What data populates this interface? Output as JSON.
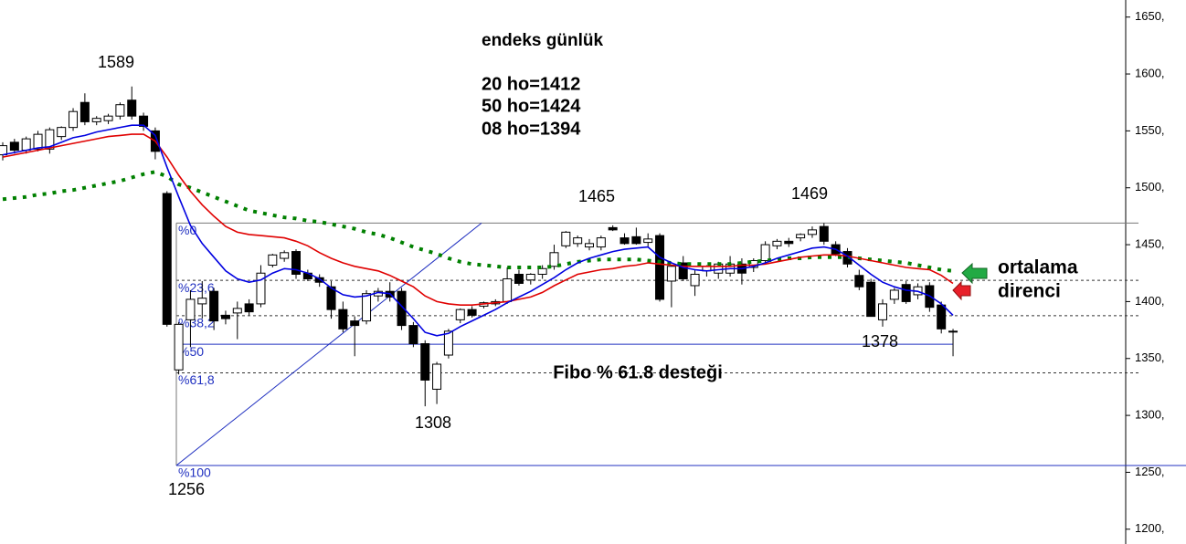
{
  "chart_data": {
    "type": "candlestick",
    "ylim": [
      1187,
      1665
    ],
    "yticks": [
      {
        "value": 1200,
        "label": "1200,"
      },
      {
        "value": 1250,
        "label": "1250,"
      },
      {
        "value": 1300,
        "label": "1300,"
      },
      {
        "value": 1350,
        "label": "1350,"
      },
      {
        "value": 1400,
        "label": "1400,"
      },
      {
        "value": 1450,
        "label": "1450,"
      },
      {
        "value": 1500,
        "label": "1500,"
      },
      {
        "value": 1550,
        "label": "1550,"
      },
      {
        "value": 1600,
        "label": "1600,"
      },
      {
        "value": 1650,
        "label": "1650,"
      }
    ],
    "candles": [
      [
        1529,
        1540,
        1524,
        1537
      ],
      [
        1540,
        1543,
        1530,
        1533
      ],
      [
        1533,
        1545,
        1530,
        1543
      ],
      [
        1534,
        1550,
        1532,
        1547
      ],
      [
        1534,
        1553,
        1530,
        1551
      ],
      [
        1545,
        1554,
        1542,
        1553
      ],
      [
        1553,
        1570,
        1550,
        1567
      ],
      [
        1575,
        1583,
        1555,
        1558
      ],
      [
        1558,
        1563,
        1555,
        1561
      ],
      [
        1559,
        1565,
        1556,
        1563
      ],
      [
        1563,
        1575,
        1560,
        1573
      ],
      [
        1577,
        1589,
        1560,
        1563
      ],
      [
        1563,
        1566,
        1550,
        1554
      ],
      [
        1550,
        1553,
        1525,
        1532
      ],
      [
        1495,
        1497,
        1378,
        1380
      ],
      [
        1340,
        1382,
        1336,
        1380
      ],
      [
        1384,
        1410,
        1360,
        1402
      ],
      [
        1398,
        1418,
        1385,
        1403
      ],
      [
        1409,
        1412,
        1375,
        1383
      ],
      [
        1388,
        1392,
        1380,
        1385
      ],
      [
        1390,
        1400,
        1367,
        1394
      ],
      [
        1398,
        1402,
        1388,
        1391
      ],
      [
        1398,
        1432,
        1395,
        1425
      ],
      [
        1432,
        1442,
        1430,
        1441
      ],
      [
        1438,
        1445,
        1435,
        1443
      ],
      [
        1444,
        1446,
        1420,
        1424
      ],
      [
        1425,
        1428,
        1418,
        1420
      ],
      [
        1421,
        1424,
        1413,
        1417
      ],
      [
        1413,
        1418,
        1385,
        1393
      ],
      [
        1393,
        1400,
        1373,
        1376
      ],
      [
        1383,
        1387,
        1352,
        1379
      ],
      [
        1383,
        1410,
        1380,
        1407
      ],
      [
        1405,
        1412,
        1400,
        1409
      ],
      [
        1409,
        1417,
        1400,
        1404
      ],
      [
        1409,
        1412,
        1375,
        1379
      ],
      [
        1379,
        1382,
        1360,
        1363
      ],
      [
        1363,
        1366,
        1308,
        1331
      ],
      [
        1323,
        1347,
        1310,
        1345
      ],
      [
        1353,
        1376,
        1350,
        1374
      ],
      [
        1384,
        1394,
        1381,
        1393
      ],
      [
        1393,
        1396,
        1386,
        1388
      ],
      [
        1396,
        1400,
        1394,
        1399
      ],
      [
        1398,
        1402,
        1396,
        1400
      ],
      [
        1400,
        1430,
        1398,
        1420
      ],
      [
        1424,
        1428,
        1414,
        1416
      ],
      [
        1419,
        1425,
        1415,
        1424
      ],
      [
        1424,
        1432,
        1420,
        1429
      ],
      [
        1431,
        1450,
        1428,
        1443
      ],
      [
        1449,
        1462,
        1447,
        1461
      ],
      [
        1451,
        1458,
        1448,
        1456
      ],
      [
        1448,
        1455,
        1445,
        1451
      ],
      [
        1448,
        1458,
        1445,
        1456
      ],
      [
        1465,
        1467,
        1462,
        1463
      ],
      [
        1456,
        1460,
        1450,
        1451
      ],
      [
        1457,
        1465,
        1450,
        1451
      ],
      [
        1452,
        1460,
        1448,
        1455
      ],
      [
        1458,
        1460,
        1400,
        1402
      ],
      [
        1418,
        1432,
        1395,
        1431
      ],
      [
        1434,
        1440,
        1418,
        1420
      ],
      [
        1414,
        1428,
        1405,
        1424
      ],
      [
        1427,
        1432,
        1422,
        1431
      ],
      [
        1425,
        1435,
        1420,
        1433
      ],
      [
        1425,
        1440,
        1422,
        1433
      ],
      [
        1433,
        1438,
        1415,
        1425
      ],
      [
        1430,
        1438,
        1426,
        1436
      ],
      [
        1436,
        1453,
        1434,
        1450
      ],
      [
        1449,
        1455,
        1446,
        1453
      ],
      [
        1453,
        1456,
        1448,
        1451
      ],
      [
        1456,
        1460,
        1453,
        1459
      ],
      [
        1459,
        1466,
        1456,
        1463
      ],
      [
        1466,
        1469,
        1450,
        1453
      ],
      [
        1450,
        1453,
        1440,
        1442
      ],
      [
        1444,
        1447,
        1430,
        1433
      ],
      [
        1423,
        1428,
        1410,
        1413
      ],
      [
        1417,
        1420,
        1387,
        1387
      ],
      [
        1384,
        1402,
        1378,
        1398
      ],
      [
        1402,
        1412,
        1398,
        1410
      ],
      [
        1415,
        1418,
        1398,
        1400
      ],
      [
        1406,
        1416,
        1402,
        1413
      ],
      [
        1414,
        1417,
        1391,
        1395
      ],
      [
        1397,
        1400,
        1372,
        1376
      ],
      [
        1374,
        1376,
        1352,
        1374
      ]
    ],
    "lines": [
      {
        "color": "#008000",
        "dotted": true,
        "values": [
          1490,
          1491,
          1492,
          1494,
          1495,
          1497,
          1498,
          1500,
          1502,
          1504,
          1506,
          1509,
          1512,
          1514,
          1510,
          1503,
          1500,
          1496,
          1492,
          1488,
          1484,
          1480,
          1478,
          1476,
          1474,
          1473,
          1471,
          1470,
          1468,
          1466,
          1464,
          1461,
          1459,
          1456,
          1452,
          1448,
          1445,
          1442,
          1438,
          1435,
          1433,
          1432,
          1431,
          1430,
          1430,
          1430,
          1430,
          1431,
          1433,
          1435,
          1436,
          1437,
          1437,
          1437,
          1437,
          1436,
          1435,
          1434,
          1433,
          1433,
          1433,
          1433,
          1433,
          1434,
          1435,
          1436,
          1437,
          1438,
          1438,
          1439,
          1439,
          1439,
          1439,
          1438,
          1437,
          1436,
          1435,
          1434,
          1432,
          1430,
          1428,
          1427
        ]
      },
      {
        "color": "#e00000",
        "dotted": false,
        "values": [
          1527,
          1529,
          1531,
          1533,
          1535,
          1537,
          1539,
          1541,
          1543,
          1545,
          1546,
          1547,
          1547,
          1541,
          1527,
          1511,
          1497,
          1485,
          1475,
          1466,
          1461,
          1459,
          1458,
          1457,
          1456,
          1453,
          1449,
          1443,
          1438,
          1434,
          1431,
          1429,
          1427,
          1423,
          1418,
          1413,
          1405,
          1400,
          1398,
          1397,
          1397,
          1398,
          1399,
          1400,
          1402,
          1404,
          1408,
          1414,
          1419,
          1424,
          1426,
          1428,
          1429,
          1431,
          1432,
          1434,
          1433,
          1432,
          1431,
          1431,
          1431,
          1431,
          1431,
          1432,
          1432,
          1433,
          1435,
          1437,
          1439,
          1440,
          1441,
          1441,
          1440,
          1438,
          1436,
          1434,
          1432,
          1430,
          1429,
          1428,
          1423,
          1416
        ]
      },
      {
        "color": "#0000e0",
        "dotted": false,
        "values": [
          1529,
          1531,
          1533,
          1535,
          1536,
          1540,
          1544,
          1546,
          1549,
          1551,
          1553,
          1555,
          1555,
          1546,
          1518,
          1492,
          1467,
          1451,
          1439,
          1427,
          1420,
          1417,
          1419,
          1425,
          1429,
          1428,
          1425,
          1420,
          1412,
          1406,
          1404,
          1405,
          1408,
          1407,
          1396,
          1385,
          1373,
          1370,
          1372,
          1378,
          1383,
          1388,
          1393,
          1399,
          1404,
          1409,
          1415,
          1421,
          1428,
          1434,
          1438,
          1441,
          1444,
          1446,
          1447,
          1448,
          1439,
          1434,
          1430,
          1428,
          1427,
          1428,
          1429,
          1429,
          1431,
          1434,
          1438,
          1441,
          1444,
          1447,
          1448,
          1446,
          1440,
          1432,
          1424,
          1417,
          1413,
          1410,
          1409,
          1405,
          1398,
          1388
        ]
      }
    ],
    "fibo": [
      {
        "value": 1469,
        "label": "%0"
      },
      {
        "value": 1418.7,
        "label": "%23,6"
      },
      {
        "value": 1387.6,
        "label": "%38,2"
      },
      {
        "value": 1362.5,
        "label": "%50"
      },
      {
        "value": 1337.4,
        "label": "%61,8"
      },
      {
        "value": 1256,
        "label": "%100"
      }
    ],
    "annotations": [
      "endeks günlük",
      "20 ho=1412",
      "50 ho=1424",
      "08 ho=1394",
      "1589",
      "1465",
      "1469",
      "1308",
      "1256",
      "1378",
      "Fibo % 61.8 desteği",
      "ortalama",
      "direnci"
    ]
  }
}
